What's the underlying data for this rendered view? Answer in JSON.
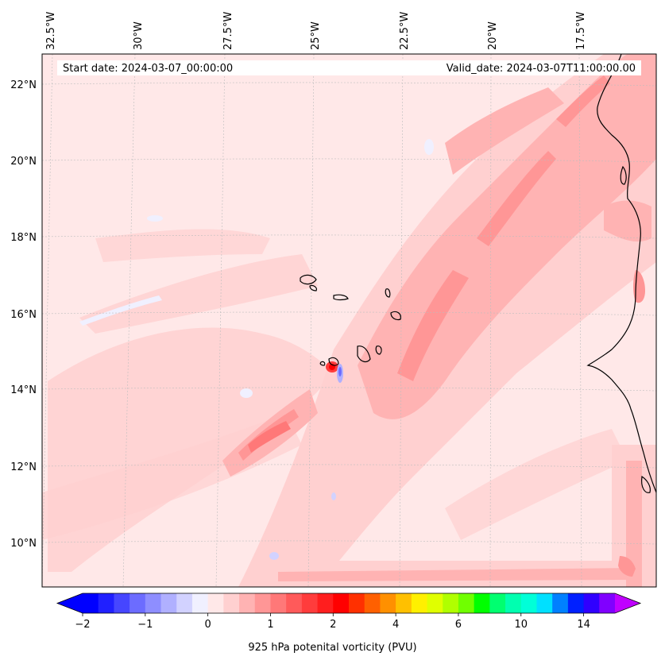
{
  "header": {
    "start_date": "Start date: 2024-03-07_00:00:00",
    "valid_date": "Valid_date: 2024-03-07T11:00:00.00"
  },
  "map": {
    "longitude_labels": [
      "32.5°W",
      "30°W",
      "27.5°W",
      "25°W",
      "22.5°W",
      "20°W",
      "17.5°W"
    ],
    "latitude_labels": [
      "22°N",
      "20°N",
      "18°N",
      "16°N",
      "14°N",
      "12°N",
      "10°N"
    ],
    "background_color": "#ffe8e8",
    "coastline_color": "#000000"
  },
  "colorbar": {
    "label": "925 hPa potenital vorticity (PVU)",
    "tick_labels": [
      "−2",
      "−1",
      "0",
      "1",
      "2",
      "4",
      "6",
      "10",
      "14"
    ],
    "colors": [
      "#0000ff",
      "#2020ff",
      "#4646ff",
      "#6c6cff",
      "#8e8eff",
      "#b0b0ff",
      "#d2d2ff",
      "#f0f0ff",
      "#ffe8e8",
      "#ffd0d0",
      "#ffb3b3",
      "#ff9696",
      "#ff7878",
      "#ff5a5a",
      "#ff3c3c",
      "#ff1e1e",
      "#ff0000",
      "#ff3000",
      "#ff6000",
      "#ff9000",
      "#ffc000",
      "#fff000",
      "#e0ff00",
      "#b0ff00",
      "#70ff00",
      "#00ff00",
      "#00ff70",
      "#00ffb0",
      "#00ffd8",
      "#00e0ff",
      "#0080ff",
      "#0020ff",
      "#3000ff",
      "#8000ff"
    ],
    "extend_low_color": "#0000ff",
    "extend_high_color": "#c000ff"
  }
}
